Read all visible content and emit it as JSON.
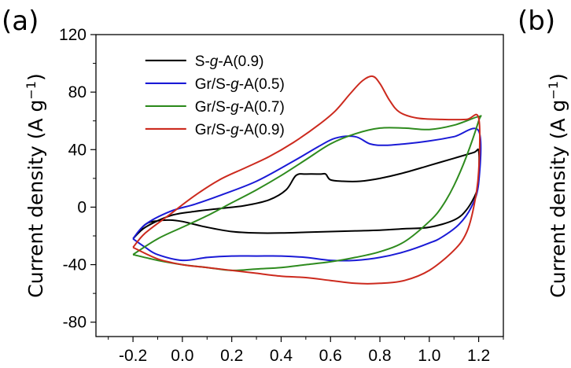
{
  "panels": {
    "left": "(a)",
    "right": "(b)"
  },
  "axis": {
    "ylabel_main": "Current density (A g",
    "ylabel_sup": "−1",
    "ylabel_close": ")",
    "right_ylabel_main": "Current density (A g",
    "right_ylabel_sup": "−1",
    "right_ylabel_close": ")"
  },
  "chart_data": {
    "type": "line",
    "title": "",
    "xlabel": "",
    "ylabel": "Current density (A g−1)",
    "xlim": [
      -0.35,
      1.3
    ],
    "ylim": [
      -90,
      120
    ],
    "xticks": [
      -0.2,
      0.0,
      0.2,
      0.4,
      0.6,
      0.8,
      1.0,
      1.2
    ],
    "xtick_labels": [
      "-0.2",
      "0.0",
      "0.2",
      "0.4",
      "0.6",
      "0.8",
      "1.0",
      "1.2"
    ],
    "yticks": [
      -80,
      -40,
      0,
      40,
      80,
      120
    ],
    "ytick_labels": [
      "-80",
      "-40",
      "0",
      "40",
      "80",
      "120"
    ],
    "grid": false,
    "legend_position": "top-left",
    "series": [
      {
        "name": "S-g-A(0.9)",
        "label_parts": [
          "S-",
          "g",
          "-A(0.9)"
        ],
        "color": "#000000",
        "x": [
          -0.2,
          -0.15,
          -0.05,
          0.05,
          0.15,
          0.25,
          0.35,
          0.42,
          0.46,
          0.5,
          0.56,
          0.58,
          0.6,
          0.65,
          0.72,
          0.8,
          0.9,
          1.0,
          1.1,
          1.18,
          1.2,
          1.2,
          1.19,
          1.15,
          1.1,
          1.0,
          0.9,
          0.8,
          0.7,
          0.6,
          0.5,
          0.4,
          0.3,
          0.2,
          0.1,
          0.05,
          0.0,
          -0.05,
          -0.1,
          -0.15,
          -0.2
        ],
        "y": [
          -22,
          -14,
          -6,
          -3,
          -1,
          1,
          5,
          12,
          22,
          23,
          23,
          23,
          19,
          18,
          18,
          20,
          24,
          29,
          34,
          38,
          39,
          20,
          10,
          -2,
          -9,
          -14,
          -15,
          -16,
          -16.5,
          -17,
          -17.5,
          -18,
          -18,
          -17,
          -14,
          -12,
          -10,
          -9,
          -9.5,
          -12,
          -22
        ]
      },
      {
        "name": "Gr/S-g-A(0.5)",
        "label_parts": [
          "Gr/S-",
          "g",
          "-A(0.5)"
        ],
        "color": "#1a1ad6",
        "x": [
          -0.2,
          -0.15,
          -0.05,
          0.05,
          0.15,
          0.3,
          0.45,
          0.55,
          0.62,
          0.7,
          0.76,
          0.82,
          0.9,
          1.0,
          1.1,
          1.2,
          1.2,
          1.17,
          1.12,
          1.05,
          1.0,
          0.9,
          0.8,
          0.7,
          0.6,
          0.5,
          0.4,
          0.3,
          0.2,
          0.1,
          0.0,
          -0.1,
          -0.15,
          -0.2
        ],
        "y": [
          -22,
          -12,
          -3,
          2,
          8,
          18,
          32,
          42,
          48,
          49,
          44,
          43,
          44,
          46,
          49,
          53,
          17,
          0,
          -12,
          -21,
          -25,
          -31,
          -35,
          -37,
          -37,
          -35,
          -34,
          -34,
          -34,
          -35,
          -37,
          -33,
          -28,
          -22
        ]
      },
      {
        "name": "Gr/S-g-A(0.7)",
        "label_parts": [
          "Gr/S-",
          "g",
          "-A(0.7)"
        ],
        "color": "#2e8b1e",
        "x": [
          -0.2,
          -0.1,
          0.0,
          0.1,
          0.2,
          0.3,
          0.4,
          0.5,
          0.6,
          0.7,
          0.8,
          0.9,
          1.0,
          1.1,
          1.2,
          1.2,
          1.15,
          1.1,
          1.05,
          1.0,
          0.9,
          0.8,
          0.7,
          0.6,
          0.5,
          0.4,
          0.3,
          0.2,
          0.1,
          0.0,
          -0.1,
          -0.2
        ],
        "y": [
          -33,
          -22,
          -14,
          -6,
          3,
          12,
          22,
          33,
          44,
          51,
          55,
          55,
          54,
          57,
          63,
          60,
          35,
          15,
          0,
          -10,
          -24,
          -31,
          -35,
          -38,
          -40,
          -42,
          -43,
          -44,
          -42,
          -40,
          -37,
          -33
        ]
      },
      {
        "name": "Gr/S-g-A(0.9)",
        "label_parts": [
          "Gr/S-",
          "g",
          "-A(0.9)"
        ],
        "color": "#cc2a1e",
        "x": [
          -0.2,
          -0.15,
          -0.05,
          0.05,
          0.15,
          0.25,
          0.35,
          0.45,
          0.55,
          0.62,
          0.68,
          0.73,
          0.77,
          0.8,
          0.84,
          0.88,
          0.95,
          1.05,
          1.15,
          1.2,
          1.2,
          1.18,
          1.15,
          1.1,
          1.0,
          0.9,
          0.8,
          0.7,
          0.6,
          0.5,
          0.4,
          0.3,
          0.2,
          0.1,
          0.0,
          -0.1,
          -0.2
        ],
        "y": [
          -28,
          -18,
          -5,
          8,
          19,
          27,
          35,
          45,
          57,
          67,
          79,
          88,
          91,
          86,
          74,
          66,
          62,
          61,
          61,
          62,
          25,
          0,
          -18,
          -30,
          -44,
          -51,
          -53,
          -53,
          -51,
          -49,
          -48,
          -46,
          -44,
          -42,
          -40,
          -36,
          -28
        ]
      }
    ]
  }
}
